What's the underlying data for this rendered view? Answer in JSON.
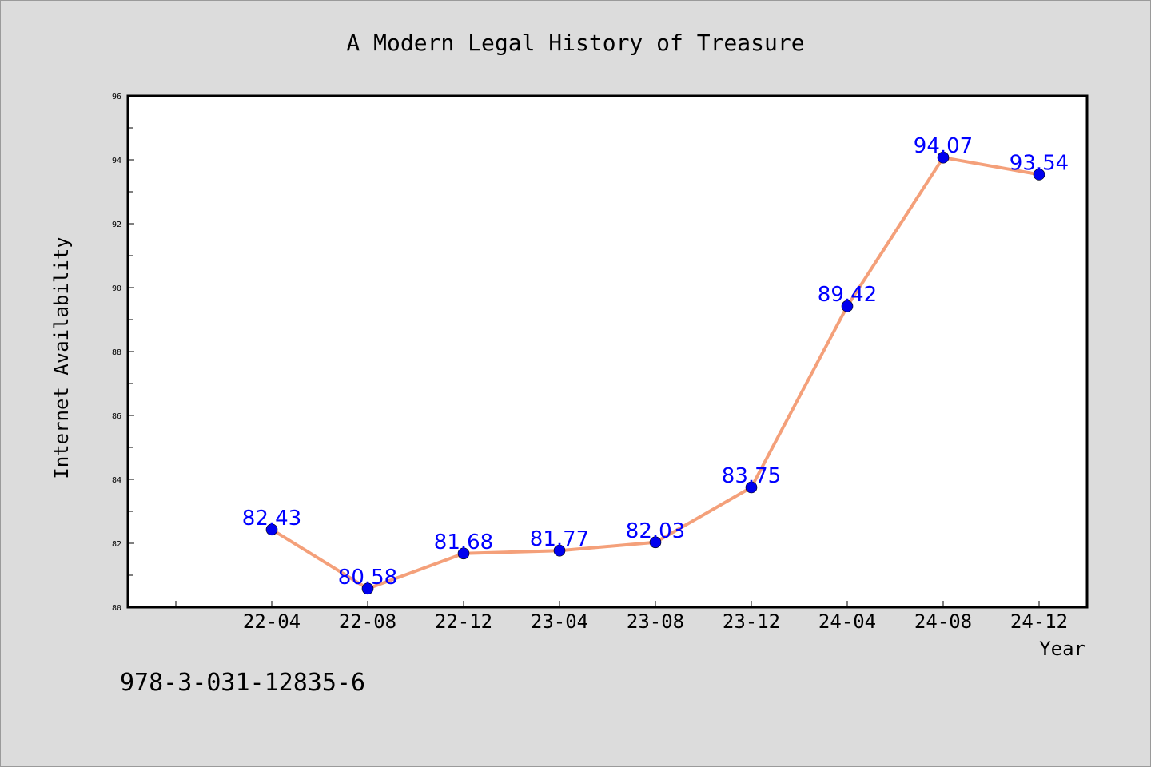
{
  "chart_data": {
    "type": "line",
    "title": "A Modern Legal History of Treasure",
    "xlabel": "Year",
    "ylabel": "Internet Availability",
    "categories": [
      "22-04",
      "22-08",
      "22-12",
      "23-04",
      "23-08",
      "23-12",
      "24-04",
      "24-08",
      "24-12"
    ],
    "series": [
      {
        "values": [
          82.43,
          80.58,
          81.68,
          81.77,
          82.03,
          83.75,
          89.42,
          94.07,
          93.54
        ],
        "labels": [
          "82.43",
          "80.58",
          "81.68",
          "81.77",
          "82.03",
          "83.75",
          "89.42",
          "94.07",
          "93.54"
        ]
      }
    ],
    "ylim": [
      80,
      96
    ],
    "yticks": [
      "80",
      "82",
      "84",
      "86",
      "88",
      "90",
      "92",
      "94",
      "96"
    ],
    "grid": false,
    "legend": "none",
    "line_color": "#f4a07a",
    "marker_color": "#0000ee",
    "label_color": "#0000ff"
  },
  "footer": {
    "isbn": "978-3-031-12835-6"
  }
}
